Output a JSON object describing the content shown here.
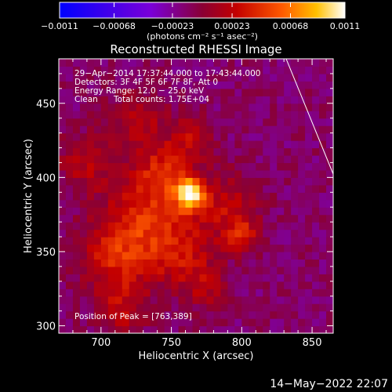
{
  "chart_data": {
    "type": "heatmap",
    "title": "Reconstructed RHESSI Image",
    "xlabel": "Heliocentric X (arcsec)",
    "ylabel": "Heliocentric Y (arcsec)",
    "xlim": [
      670,
      865
    ],
    "ylim": [
      295,
      480
    ],
    "x_ticks": [
      700,
      750,
      800,
      850
    ],
    "y_ticks": [
      300,
      350,
      400,
      450
    ],
    "x_tick_labels": [
      "700",
      "750",
      "800",
      "850"
    ],
    "y_tick_labels": [
      "300",
      "350",
      "400",
      "450"
    ],
    "colorbar": {
      "range": [
        -0.0011,
        0.0011
      ],
      "ticks": [
        -0.0011,
        -0.00068,
        -0.00023,
        0.00023,
        0.00068,
        0.0011
      ],
      "tick_labels": [
        "−0.0011",
        "−0.00068",
        "−0.00023",
        "0.00023",
        "0.00068",
        "0.0011"
      ],
      "unit_label": "(photons cm⁻² s⁻¹ asec⁻²)"
    },
    "annotations": {
      "time": "29−Apr−2014 17:37:44.000 to 17:43:44.000",
      "detectors": "Detectors: 3F 4F 5F 6F 7F 8F, Att 0",
      "energy": "Energy Range: 12.0 − 25.0 keV",
      "clean": "Clean",
      "counts": "Total counts: 1.75E+04",
      "peak": "Position of Peak = [763,389]"
    },
    "peak": {
      "x": 763,
      "y": 389,
      "value": 0.0011
    },
    "sources": [
      {
        "x": 763,
        "y": 389,
        "sigma": 7,
        "value": 0.00105
      },
      {
        "x": 735,
        "y": 370,
        "sigma": 22,
        "value": 0.0005
      },
      {
        "x": 710,
        "y": 345,
        "sigma": 18,
        "value": 0.0004
      },
      {
        "x": 745,
        "y": 405,
        "sigma": 15,
        "value": 0.0004
      },
      {
        "x": 790,
        "y": 380,
        "sigma": 16,
        "value": 0.00035
      },
      {
        "x": 800,
        "y": 360,
        "sigma": 8,
        "value": 0.0004
      },
      {
        "x": 690,
        "y": 410,
        "sigma": 14,
        "value": 0.0003
      },
      {
        "x": 725,
        "y": 440,
        "sigma": 14,
        "value": 0.0003
      },
      {
        "x": 760,
        "y": 345,
        "sigma": 14,
        "value": 0.0003
      },
      {
        "x": 715,
        "y": 310,
        "sigma": 12,
        "value": 0.0003
      },
      {
        "x": 775,
        "y": 325,
        "sigma": 10,
        "value": 0.00025
      },
      {
        "x": 765,
        "y": 428,
        "sigma": 10,
        "value": 0.0003
      }
    ]
  },
  "footer": {
    "timestamp": "14−May−2022 22:07"
  }
}
